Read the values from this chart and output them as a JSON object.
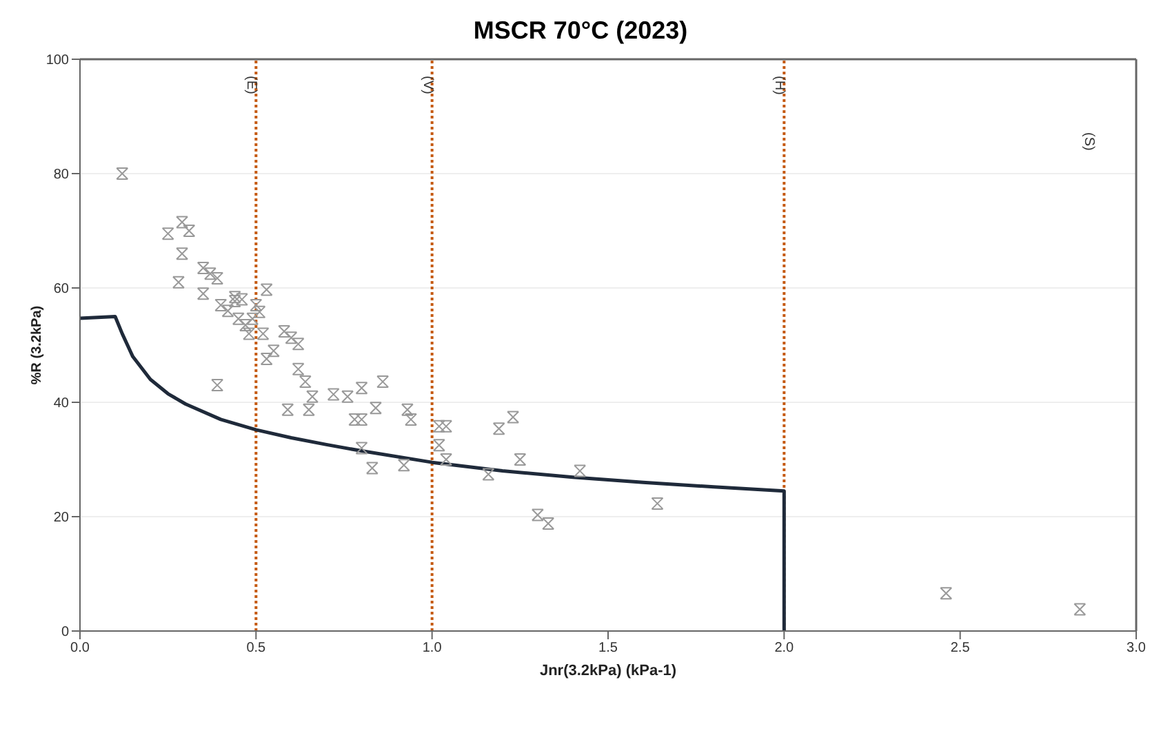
{
  "chart_data": {
    "type": "scatter",
    "title": "MSCR 70°C (2023)",
    "xlabel": "Jnr(3.2kPa) (kPa-1)",
    "ylabel": "%R (3.2kPa)",
    "xlim": [
      0,
      3
    ],
    "xticks": [
      {
        "value": 0,
        "label": "0.0"
      },
      {
        "value": 0.5,
        "label": "0.5"
      },
      {
        "value": 1,
        "label": "1.0"
      },
      {
        "value": 1.5,
        "label": "1.5"
      },
      {
        "value": 2,
        "label": "2.0"
      },
      {
        "value": 2.5,
        "label": "2.5"
      },
      {
        "value": 3,
        "label": "3.0"
      }
    ],
    "ylim": [
      0,
      100
    ],
    "yticks": [
      0,
      20,
      40,
      60,
      80,
      100
    ],
    "grid": "y",
    "legend": false,
    "series": [
      {
        "color": "#999999",
        "marker": "cross",
        "x": [
          0.12,
          0.25,
          0.29,
          0.31,
          0.29,
          0.28,
          0.35,
          0.37,
          0.39,
          0.35,
          0.39,
          0.4,
          0.42,
          0.44,
          0.44,
          0.45,
          0.46,
          0.47,
          0.48,
          0.49,
          0.5,
          0.51,
          0.52,
          0.53,
          0.53,
          0.55,
          0.58,
          0.6,
          0.62,
          0.59,
          0.62,
          0.64,
          0.65,
          0.66,
          0.72,
          0.76,
          0.78,
          0.8,
          0.8,
          0.83,
          0.84,
          0.86,
          0.8,
          0.92,
          0.93,
          0.94,
          1.02,
          1.04,
          1.02,
          1.04,
          1.16,
          1.19,
          1.23,
          1.25,
          1.3,
          1.33,
          1.42,
          1.64,
          2.46,
          2.84
        ],
        "values": [
          80,
          69.5,
          71.5,
          70,
          66,
          61,
          63.5,
          62.5,
          61.7,
          59,
          43,
          57,
          56,
          57.7,
          58.4,
          54.6,
          58,
          53.5,
          52,
          54.6,
          57,
          55.8,
          52,
          59.7,
          47.6,
          49,
          52.4,
          51.3,
          50.2,
          38.7,
          45.8,
          43.6,
          38.7,
          41,
          41.4,
          41,
          37,
          42.5,
          32,
          28.5,
          39,
          43.6,
          37,
          29,
          38.7,
          37,
          35.8,
          35.8,
          32.5,
          30,
          27.4,
          35.4,
          37.4,
          30,
          20.3,
          18.8,
          28,
          22.3,
          6.6,
          3.8
        ]
      },
      {
        "type": "line",
        "color": "#1f2a3a",
        "marker": "none",
        "line_style": "solid",
        "x": [
          0,
          0.1,
          0.12,
          0.15,
          0.2,
          0.25,
          0.3,
          0.4,
          0.5,
          0.6,
          0.7,
          0.8,
          1.0,
          1.2,
          1.4,
          1.6,
          1.8,
          2.0,
          2.0
        ],
        "values": [
          54.7,
          55,
          52,
          48,
          44,
          41.5,
          39.7,
          37,
          35.2,
          33.8,
          32.6,
          31.5,
          29.5,
          28,
          26.9,
          26,
          25.2,
          24.5,
          0
        ]
      }
    ],
    "ref_lines": [
      {
        "axis": "x",
        "value": 0.5,
        "label": "(E)",
        "color": "#c55a11",
        "line_style": "dotted"
      },
      {
        "axis": "x",
        "value": 1,
        "label": "(V)",
        "color": "#c55a11",
        "line_style": "dotted"
      },
      {
        "axis": "x",
        "value": 2,
        "label": "(H)",
        "color": "#c55a11",
        "line_style": "dotted"
      }
    ],
    "annotations": [
      "(S)"
    ]
  }
}
